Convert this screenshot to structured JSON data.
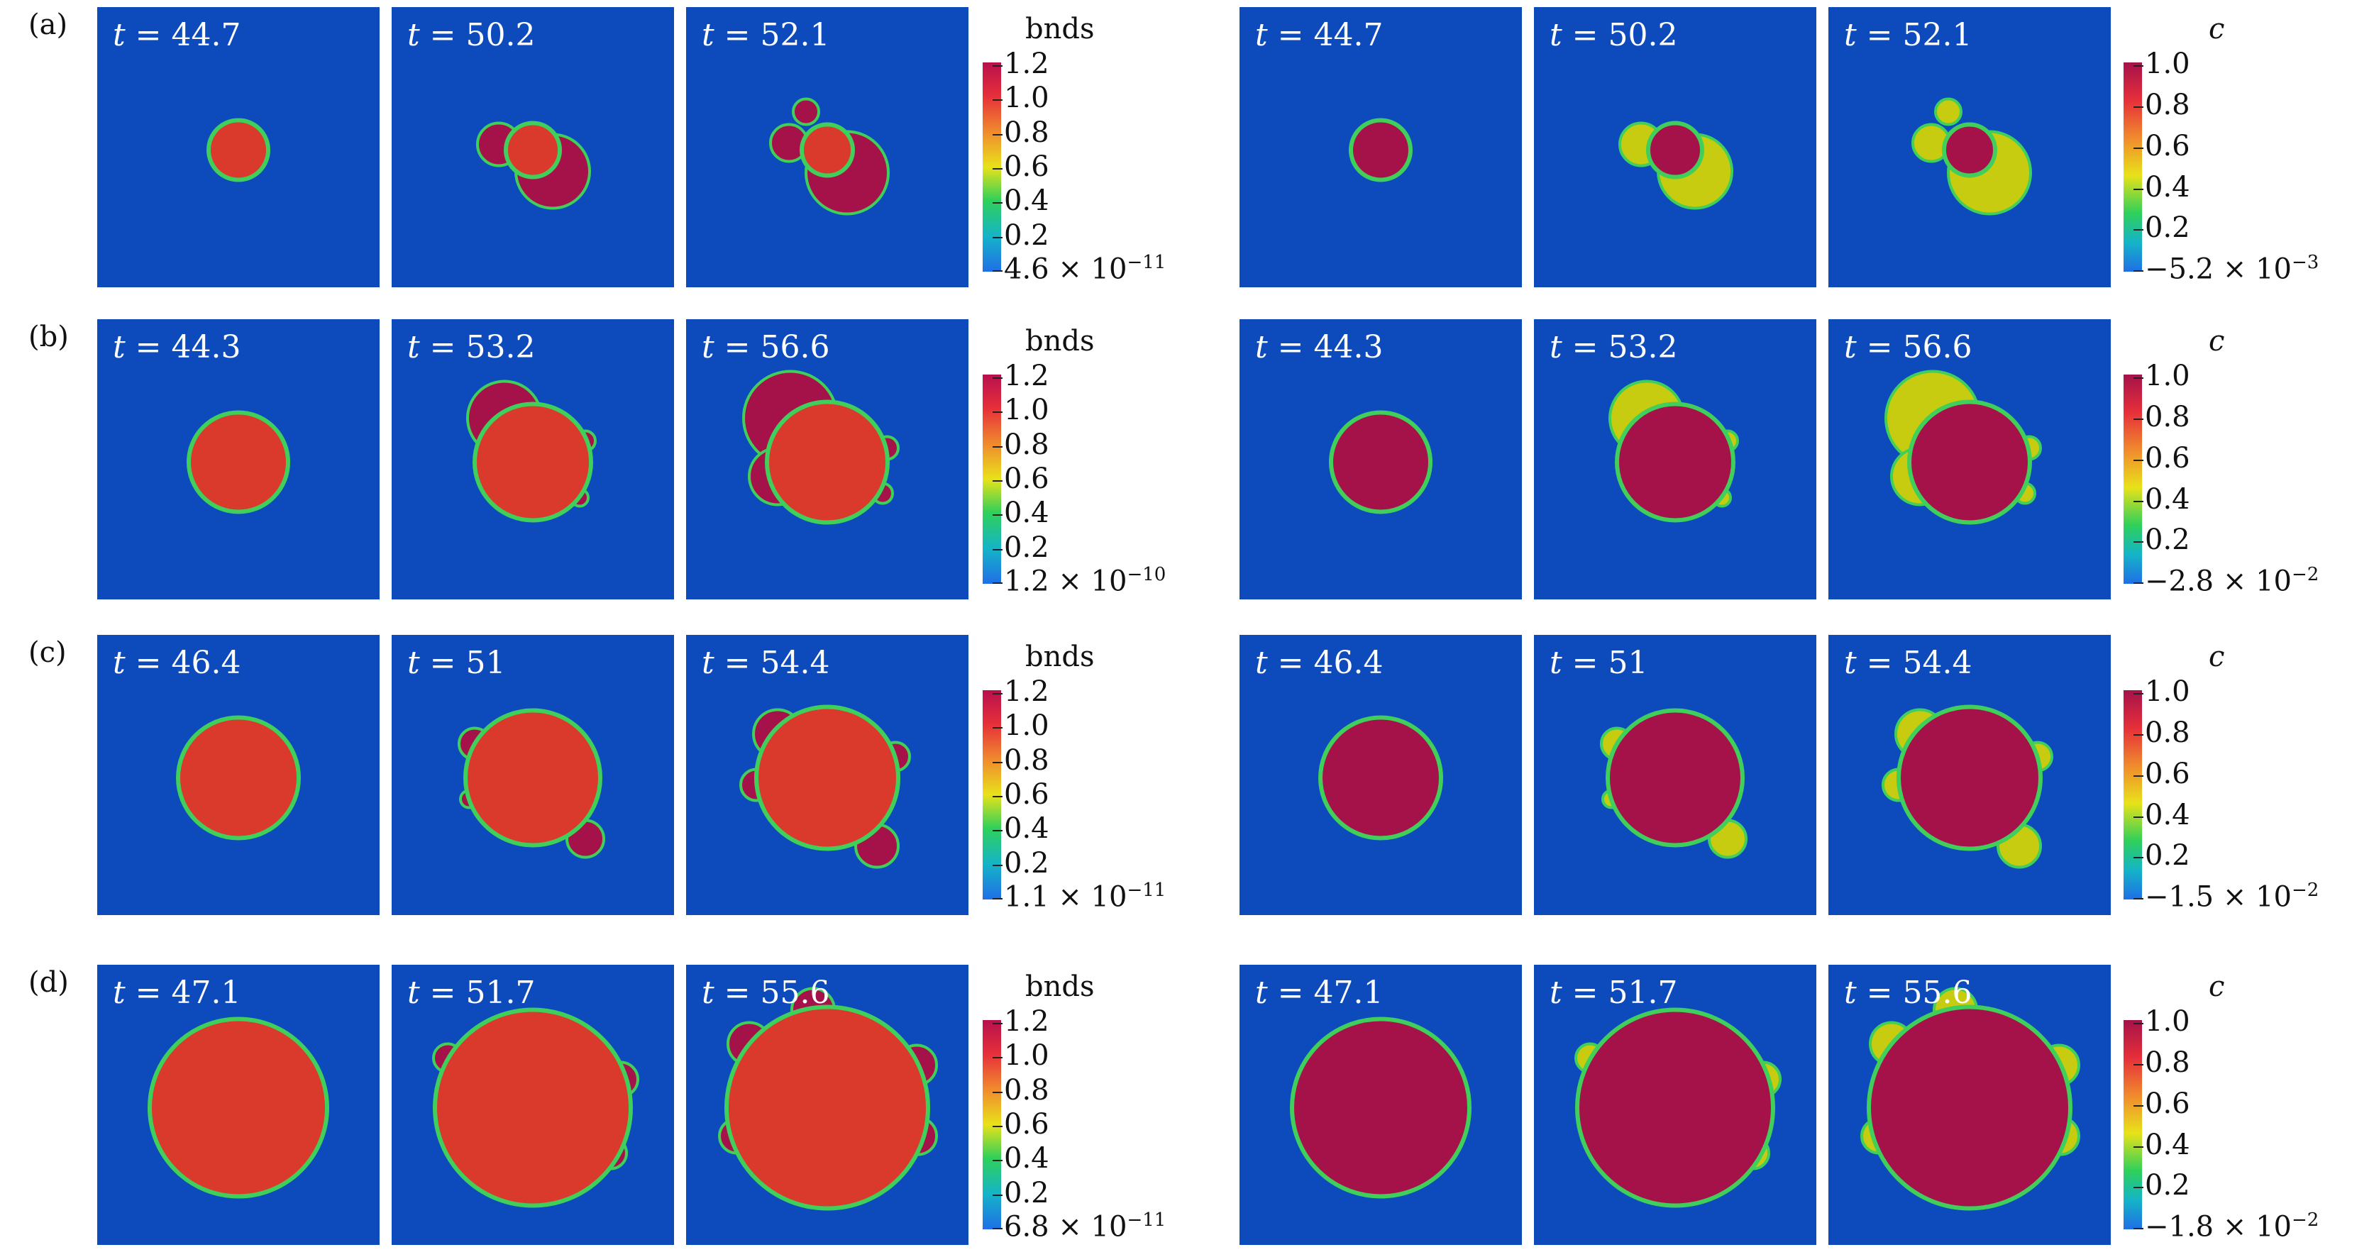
{
  "bnds_title": "bnds",
  "c_title": "c",
  "t_symbol": "t",
  "rows": [
    {
      "label": "(a)",
      "bnds_times": [
        "44.7",
        "50.2",
        "52.1"
      ],
      "c_times": [
        "44.7",
        "50.2",
        "52.1"
      ],
      "bnds_ticks": [
        "1.2",
        "1.0",
        "0.8",
        "0.6",
        "0.4",
        "0.2"
      ],
      "bnds_min": "4.6 × 10",
      "bnds_min_exp": "−11",
      "c_ticks": [
        "1.0",
        "0.8",
        "0.6",
        "0.4",
        "0.2"
      ],
      "c_min": "−5.2 × 10",
      "c_min_exp": "−3"
    },
    {
      "label": "(b)",
      "bnds_times": [
        "44.3",
        "53.2",
        "56.6"
      ],
      "c_times": [
        "44.3",
        "53.2",
        "56.6"
      ],
      "bnds_ticks": [
        "1.2",
        "1.0",
        "0.8",
        "0.6",
        "0.4",
        "0.2"
      ],
      "bnds_min": "1.2 × 10",
      "bnds_min_exp": "−10",
      "c_ticks": [
        "1.0",
        "0.8",
        "0.6",
        "0.4",
        "0.2"
      ],
      "c_min": "−2.8 × 10",
      "c_min_exp": "−2"
    },
    {
      "label": "(c)",
      "bnds_times": [
        "46.4",
        "51",
        "54.4"
      ],
      "c_times": [
        "46.4",
        "51",
        "54.4"
      ],
      "bnds_ticks": [
        "1.2",
        "1.0",
        "0.8",
        "0.6",
        "0.4",
        "0.2"
      ],
      "bnds_min": "1.1 × 10",
      "bnds_min_exp": "−11",
      "c_ticks": [
        "1.0",
        "0.8",
        "0.6",
        "0.4",
        "0.2"
      ],
      "c_min": "−1.5 × 10",
      "c_min_exp": "−2"
    },
    {
      "label": "(d)",
      "bnds_times": [
        "47.1",
        "51.7",
        "55.6"
      ],
      "c_times": [
        "47.1",
        "51.7",
        "55.6"
      ],
      "bnds_ticks": [
        "1.2",
        "1.0",
        "0.8",
        "0.6",
        "0.4",
        "0.2"
      ],
      "bnds_min": "6.8 × 10",
      "bnds_min_exp": "−11",
      "c_ticks": [
        "1.0",
        "0.8",
        "0.6",
        "0.4",
        "0.2"
      ],
      "c_min": "−1.8 × 10",
      "c_min_exp": "−2"
    }
  ],
  "colors": {
    "background": "#0d4bbd",
    "bnds_grain": "#d93a2b",
    "bnds_new_grain": "#a5124a",
    "c_grain": "#a5124a",
    "c_satellite": "#c8cc10",
    "interface": "#3fcf5a"
  }
}
